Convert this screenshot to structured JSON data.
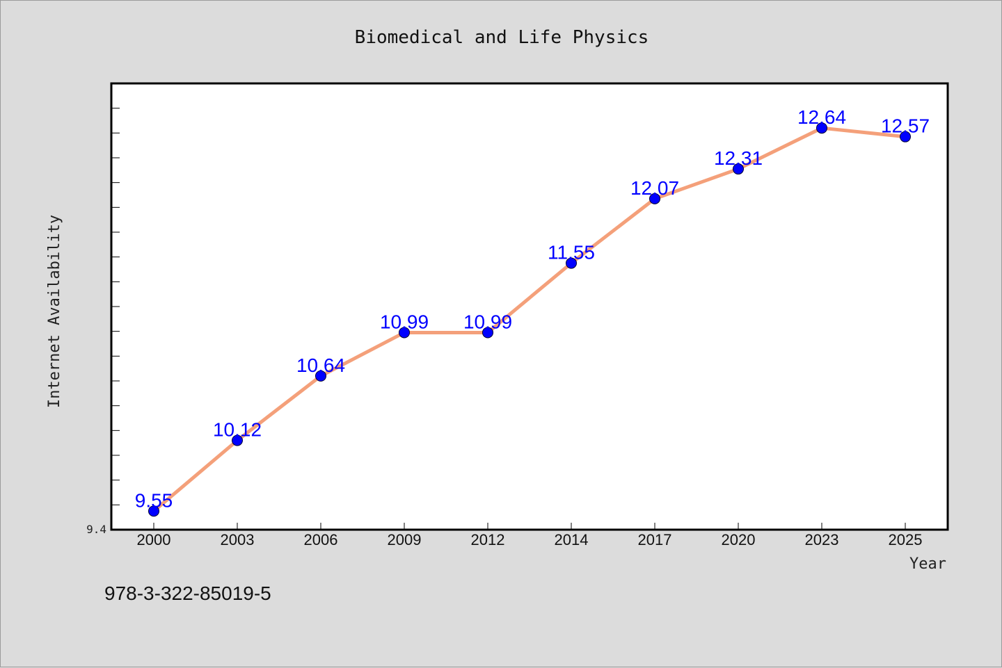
{
  "chart_data": {
    "type": "line",
    "title": "Biomedical and Life Physics",
    "xlabel": "Year",
    "ylabel": "Internet Availability",
    "categories": [
      "2000",
      "2003",
      "2006",
      "2009",
      "2012",
      "2014",
      "2017",
      "2020",
      "2023",
      "2025"
    ],
    "series": [
      {
        "values": [
          9.55,
          10.12,
          10.64,
          10.99,
          10.99,
          11.55,
          12.07,
          12.31,
          12.64,
          12.57
        ]
      }
    ],
    "data_labels": [
      "9.55",
      "10.12",
      "10.64",
      "10.99",
      "10.99",
      "11.55",
      "12.07",
      "12.31",
      "12.64",
      "12.57"
    ],
    "y_min_label": "9.4",
    "ylim": [
      9.4,
      13.0
    ],
    "grid": false,
    "line_color": "#f4a07a",
    "marker_color": "#0000ff"
  },
  "footer_text": "978-3-322-85019-5"
}
